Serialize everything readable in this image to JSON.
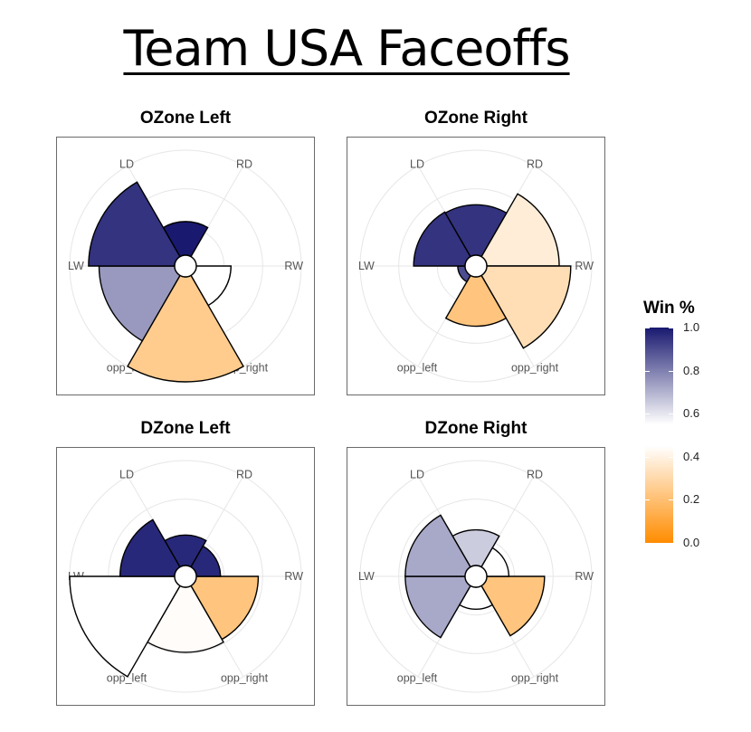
{
  "title": "Team USA Faceoffs",
  "chart_data": {
    "type": "polar-bar",
    "directions": [
      "RW",
      "opp_right",
      "opp_left",
      "LW",
      "LD",
      "RD"
    ],
    "color_scale": {
      "title": "Win %",
      "min": 0.0,
      "max": 1.0,
      "ticks": [
        "0.0",
        "0.2",
        "0.4",
        "0.6",
        "0.8",
        "1.0"
      ],
      "low_color": "#ff8c00",
      "mid_color": "#ffffff",
      "high_color": "#191970"
    },
    "panels": [
      {
        "title": "OZone Left",
        "sectors": [
          {
            "direction": "opp_right",
            "radius": 0.33,
            "win": 0.5
          },
          {
            "direction": "opp_left",
            "radius": 1.0,
            "win": 0.25
          },
          {
            "direction": "LW",
            "radius": 0.72,
            "win": 0.75
          },
          {
            "direction": "LD",
            "radius": 0.82,
            "win": 0.95
          },
          {
            "direction": "RD",
            "radius": 0.32,
            "win": 1.0
          }
        ]
      },
      {
        "title": "OZone Right",
        "sectors": [
          {
            "direction": "RW",
            "radius": 0.69,
            "win": 0.38
          },
          {
            "direction": "opp_right",
            "radius": 0.8,
            "win": 0.32
          },
          {
            "direction": "opp_left",
            "radius": 0.47,
            "win": 0.22
          },
          {
            "direction": "LW",
            "radius": 0.07,
            "win": 0.9
          },
          {
            "direction": "LD",
            "radius": 0.49,
            "win": 0.95
          },
          {
            "direction": "RD",
            "radius": 0.48,
            "win": 0.95
          }
        ]
      },
      {
        "title": "DZone Left",
        "sectors": [
          {
            "direction": "opp_right",
            "radius": 0.59,
            "win": 0.22
          },
          {
            "direction": "opp_left",
            "radius": 0.62,
            "win": 0.44
          },
          {
            "direction": "LW",
            "radius": 1.0,
            "win": 0.47
          },
          {
            "direction": "LD",
            "radius": 0.52,
            "win": 0.97
          },
          {
            "direction": "RD",
            "radius": 0.29,
            "win": 0.97
          },
          {
            "direction": "RW",
            "radius": 0.23,
            "win": 0.97
          }
        ]
      },
      {
        "title": "DZone Right",
        "sectors": [
          {
            "direction": "opp_right",
            "radius": 0.55,
            "win": 0.22
          },
          {
            "direction": "opp_left",
            "radius": 0.21,
            "win": 0.5
          },
          {
            "direction": "LW",
            "radius": 0.57,
            "win": 0.72
          },
          {
            "direction": "LD",
            "radius": 0.57,
            "win": 0.72
          },
          {
            "direction": "RD",
            "radius": 0.34,
            "win": 0.65
          },
          {
            "direction": "RW",
            "radius": 0.21,
            "win": 0.5
          }
        ]
      }
    ]
  }
}
